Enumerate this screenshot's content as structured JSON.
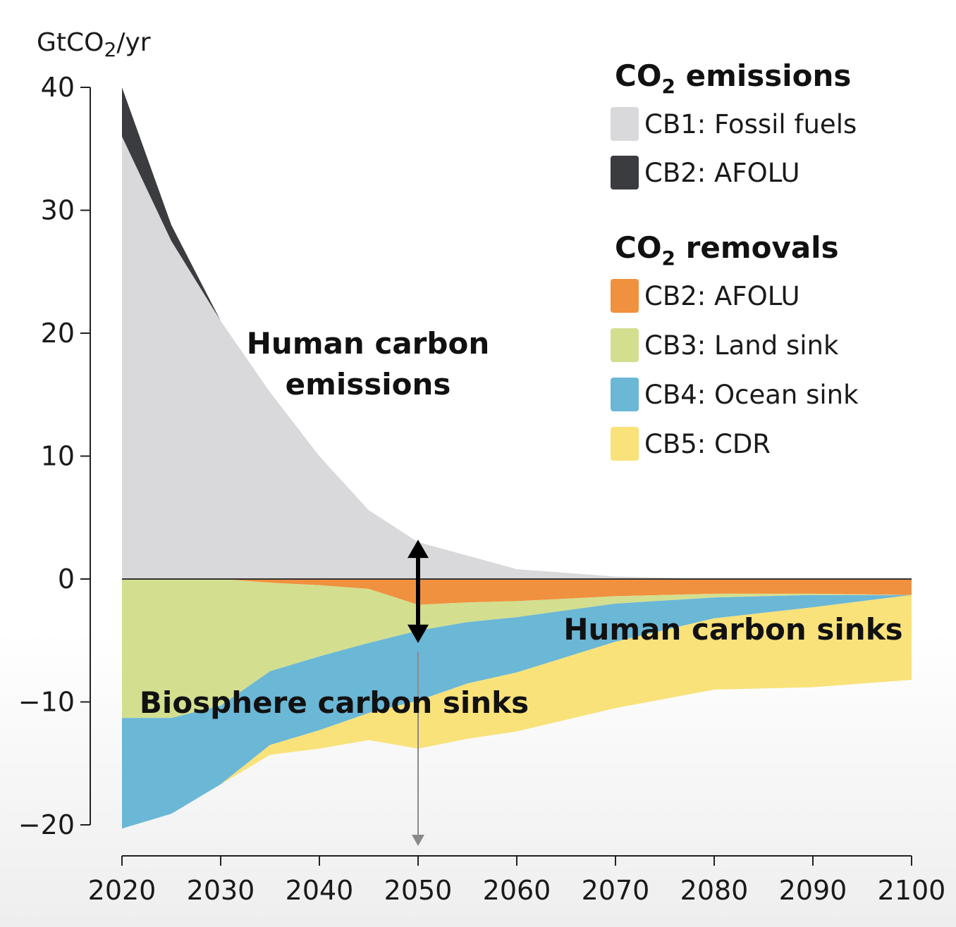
{
  "chart_data": {
    "type": "area",
    "unit_label": {
      "main": "GtCO",
      "sub": "2",
      "suffix": "/yr"
    },
    "x_ticks": [
      "2020",
      "2030",
      "2040",
      "2050",
      "2060",
      "2070",
      "2080",
      "2090",
      "2100"
    ],
    "y_ticks": [
      "40",
      "30",
      "20",
      "10",
      "0",
      "−10",
      "−20"
    ],
    "xlim": [
      2020,
      2100
    ],
    "ylim": [
      -20,
      40
    ],
    "x": [
      2020,
      2025,
      2030,
      2035,
      2040,
      2045,
      2050,
      2055,
      2060,
      2070,
      2080,
      2090,
      2100
    ],
    "emissions": {
      "title_main": "CO",
      "title_sub": "2",
      "title_suffix": " emissions",
      "series": [
        {
          "name": "CB1: Fossil fuels",
          "color": "#d9d9dc",
          "values": [
            36,
            27.5,
            21,
            15.2,
            10,
            5.6,
            3,
            1.9,
            0.8,
            0.2,
            0,
            0,
            0
          ]
        },
        {
          "name": "CB2: AFOLU",
          "color": "#3b3c40",
          "values": [
            4,
            1.3,
            0,
            0,
            0,
            0,
            0,
            0,
            0,
            0,
            0,
            0,
            0
          ]
        }
      ]
    },
    "removals": {
      "title_main": "CO",
      "title_sub": "2",
      "title_suffix": " removals",
      "series": [
        {
          "name": "CB2: AFOLU",
          "color": "#f0913f",
          "values": [
            0,
            0,
            0,
            -0.3,
            -0.5,
            -0.8,
            -2.1,
            -1.9,
            -1.8,
            -1.4,
            -1.2,
            -1.2,
            -1.3
          ]
        },
        {
          "name": "CB3: Land sink",
          "color": "#d3df8f",
          "values": [
            -11.3,
            -11.3,
            -10.3,
            -7.2,
            -5.8,
            -4.4,
            -2.1,
            -1.6,
            -1.3,
            -0.6,
            -0.3,
            -0.1,
            0
          ]
        },
        {
          "name": "CB4: Ocean sink",
          "color": "#6bb7d6",
          "values": [
            -9,
            -7.8,
            -6.4,
            -6,
            -6,
            -5.7,
            -5.7,
            -5,
            -4.5,
            -3.1,
            -1.7,
            -1,
            0
          ]
        },
        {
          "name": "CB5: CDR",
          "color": "#f9e27a",
          "values": [
            0,
            0,
            0,
            -0.8,
            -1.5,
            -2.2,
            -3.9,
            -4.5,
            -4.8,
            -5.4,
            -5.8,
            -6.5,
            -6.9
          ]
        }
      ]
    },
    "annotations": {
      "emissions_line1": "Human carbon",
      "emissions_line2": "emissions",
      "human_sinks": "Human carbon sinks",
      "biosphere_sinks": "Biosphere carbon sinks"
    }
  }
}
